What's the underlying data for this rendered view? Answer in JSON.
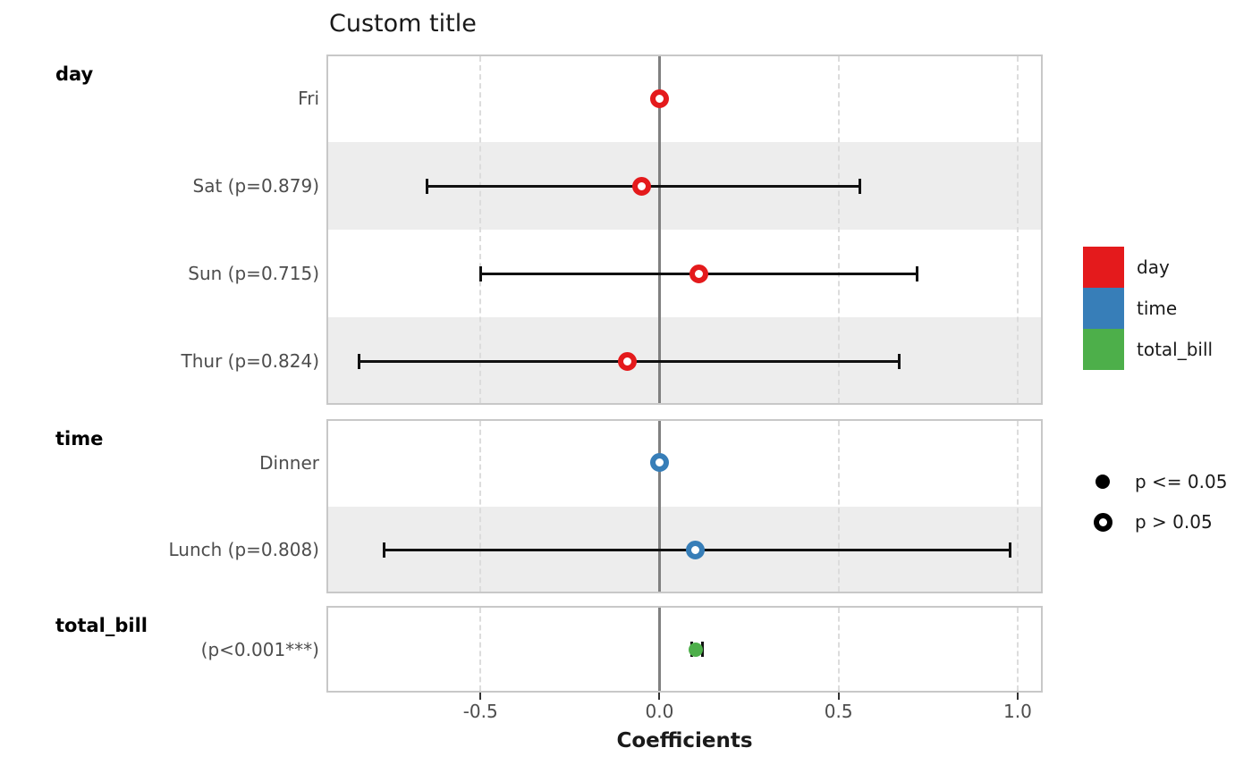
{
  "title": "Custom title",
  "chart_data": {
    "type": "scatter",
    "subtype": "coefficient-forest-plot",
    "title": "Custom title",
    "xlabel": "Coefficients",
    "ylabel": "",
    "xlim": [
      -0.93,
      1.07
    ],
    "x_ticks": [
      -0.5,
      0.0,
      0.5,
      1.0
    ],
    "x_tick_labels": [
      "-0.5",
      "0.0",
      "0.5",
      "1.0"
    ],
    "grid": "vertical dashed at non-zero ticks, solid grey line at 0",
    "legend_position": "right",
    "facets": [
      {
        "label": "day",
        "color": "#E41A1C",
        "rows": [
          {
            "label": "Fri",
            "estimate": 0.0,
            "ci_low": null,
            "ci_high": null,
            "significant": false
          },
          {
            "label": "Sat (p=0.879)",
            "estimate": -0.05,
            "ci_low": -0.65,
            "ci_high": 0.56,
            "significant": false
          },
          {
            "label": "Sun (p=0.715)",
            "estimate": 0.11,
            "ci_low": -0.5,
            "ci_high": 0.72,
            "significant": false
          },
          {
            "label": "Thur (p=0.824)",
            "estimate": -0.09,
            "ci_low": -0.84,
            "ci_high": 0.67,
            "significant": false
          }
        ]
      },
      {
        "label": "time",
        "color": "#377EB8",
        "rows": [
          {
            "label": "Dinner",
            "estimate": 0.0,
            "ci_low": null,
            "ci_high": null,
            "significant": false
          },
          {
            "label": "Lunch (p=0.808)",
            "estimate": 0.1,
            "ci_low": -0.77,
            "ci_high": 0.98,
            "significant": false
          }
        ]
      },
      {
        "label": "total_bill",
        "color": "#4DAF4A",
        "rows": [
          {
            "label": "(p<0.001***)",
            "estimate": 0.1,
            "ci_low": 0.09,
            "ci_high": 0.12,
            "significant": true
          }
        ]
      }
    ],
    "color_legend": [
      {
        "label": "day",
        "color": "#E41A1C"
      },
      {
        "label": "time",
        "color": "#377EB8"
      },
      {
        "label": "total_bill",
        "color": "#4DAF4A"
      }
    ],
    "shape_legend": [
      {
        "label": "p <= 0.05",
        "shape": "filled-circle"
      },
      {
        "label": "p > 0.05",
        "shape": "open-circle"
      }
    ]
  },
  "colors": {
    "stripe": "#ededed",
    "panel_border": "#c8c8c8",
    "grid_dashed": "#dcdcdc",
    "zero_line": "#808080",
    "error_bar": "#111111",
    "axis_text": "#4d4d4d",
    "tick_mark": "#333333",
    "legend_marker": "#000000"
  }
}
